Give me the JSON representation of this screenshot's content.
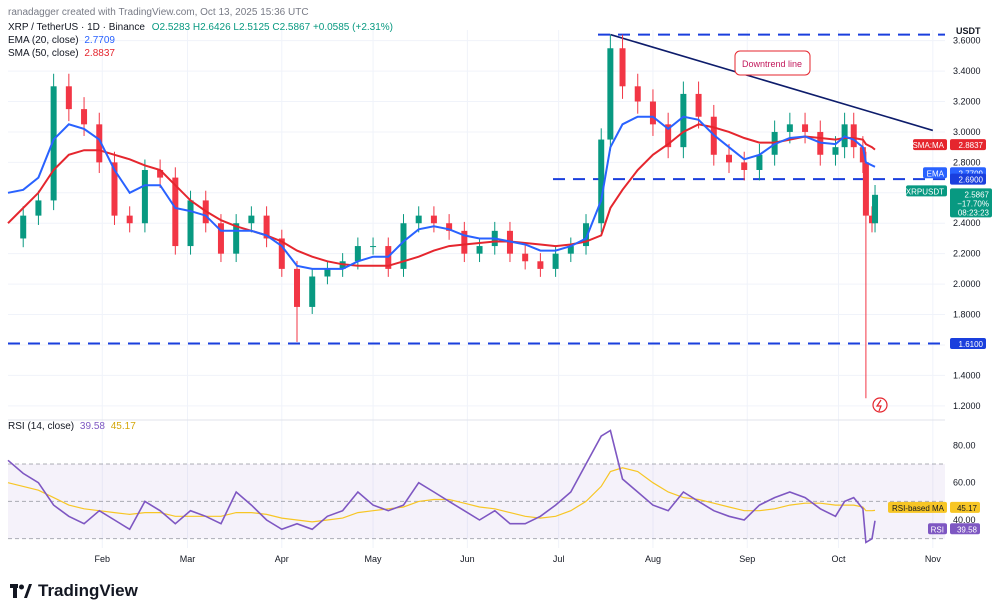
{
  "header": {
    "byline": "ranadagger created with TradingView.com, Oct 13, 2025 15:36 UTC",
    "symbol": "XRP / TetherUS · 1D · Binance",
    "ohlc": "O2.5283 H2.6426 L2.5125 C2.5867 +0.0585 (+2.31%)",
    "ema": "EMA (20, close)",
    "ema_value": "2.7709",
    "sma": "SMA (50, close)",
    "sma_value": "2.8837",
    "rsi": "RSI (14, close)",
    "rsi_value": "39.58",
    "rsi_ma_value": "45.17"
  },
  "brand": {
    "name": "TradingView"
  },
  "colors": {
    "up": "#089981",
    "down": "#f23645",
    "ema": "#2962ff",
    "sma": "#e5262e",
    "rsi": "#7e57c2",
    "rsi_ma": "#f7c625",
    "trend": "#0d1c6b",
    "level": "#1a3fdd"
  },
  "chart_data": {
    "type": "line",
    "title": "",
    "currency_label": "USDT",
    "x_ticks": [
      "Feb",
      "Mar",
      "Apr",
      "May",
      "Jun",
      "Jul",
      "Aug",
      "Sep",
      "Oct",
      "Nov"
    ],
    "y_ticks": [
      "3.6000",
      "3.4000",
      "3.2000",
      "3.0000",
      "2.8000",
      "2.6000",
      "2.4000",
      "2.2000",
      "2.0000",
      "1.8000",
      "1.6000",
      "1.4000",
      "1.2000"
    ],
    "ylim": [
      1.12,
      3.67
    ],
    "series": [
      {
        "name": "XRP / TetherUS · 1D · Binance",
        "sample_every_days": 5,
        "x": [
          "2025-01-01",
          "2025-01-06",
          "2025-01-11",
          "2025-01-16",
          "2025-01-21",
          "2025-01-26",
          "2025-01-31",
          "2025-02-05",
          "2025-02-10",
          "2025-02-15",
          "2025-02-20",
          "2025-02-25",
          "2025-03-02",
          "2025-03-07",
          "2025-03-12",
          "2025-03-17",
          "2025-03-22",
          "2025-03-27",
          "2025-04-01",
          "2025-04-06",
          "2025-04-11",
          "2025-04-16",
          "2025-04-21",
          "2025-04-26",
          "2025-05-01",
          "2025-05-06",
          "2025-05-11",
          "2025-05-16",
          "2025-05-21",
          "2025-05-26",
          "2025-05-31",
          "2025-06-05",
          "2025-06-10",
          "2025-06-15",
          "2025-06-20",
          "2025-06-25",
          "2025-06-30",
          "2025-07-05",
          "2025-07-10",
          "2025-07-15",
          "2025-07-18",
          "2025-07-22",
          "2025-07-27",
          "2025-08-01",
          "2025-08-06",
          "2025-08-11",
          "2025-08-16",
          "2025-08-21",
          "2025-08-26",
          "2025-08-31",
          "2025-09-05",
          "2025-09-10",
          "2025-09-15",
          "2025-09-20",
          "2025-09-25",
          "2025-09-30",
          "2025-10-03",
          "2025-10-06",
          "2025-10-09",
          "2025-10-10",
          "2025-10-12",
          "2025-10-13"
        ],
        "values": [
          2.3,
          2.45,
          2.55,
          3.3,
          3.15,
          3.05,
          2.8,
          2.45,
          2.4,
          2.75,
          2.7,
          2.25,
          2.55,
          2.4,
          2.2,
          2.4,
          2.45,
          2.3,
          2.1,
          1.85,
          2.05,
          2.1,
          2.15,
          2.25,
          2.25,
          2.1,
          2.4,
          2.45,
          2.4,
          2.35,
          2.2,
          2.25,
          2.35,
          2.2,
          2.15,
          2.1,
          2.2,
          2.25,
          2.4,
          2.95,
          3.55,
          3.3,
          3.2,
          3.05,
          2.9,
          3.25,
          3.1,
          2.85,
          2.8,
          2.75,
          2.85,
          3.0,
          3.05,
          3.0,
          2.85,
          2.9,
          3.05,
          2.9,
          2.8,
          2.45,
          2.4,
          2.5867
        ]
      },
      {
        "name": "EMA (20, close)",
        "values": [
          2.6,
          2.62,
          2.7,
          2.95,
          3.05,
          3.02,
          2.95,
          2.75,
          2.6,
          2.65,
          2.65,
          2.5,
          2.48,
          2.45,
          2.35,
          2.35,
          2.35,
          2.32,
          2.25,
          2.12,
          2.1,
          2.1,
          2.1,
          2.15,
          2.18,
          2.18,
          2.28,
          2.36,
          2.38,
          2.36,
          2.32,
          2.3,
          2.3,
          2.28,
          2.26,
          2.22,
          2.22,
          2.25,
          2.3,
          2.55,
          2.9,
          3.05,
          3.1,
          3.1,
          3.02,
          3.1,
          3.08,
          2.98,
          2.9,
          2.82,
          2.85,
          2.92,
          2.96,
          2.97,
          2.93,
          2.92,
          2.97,
          2.95,
          2.9,
          2.8,
          2.78,
          2.7709
        ]
      },
      {
        "name": "SMA (50, close)",
        "values": [
          2.4,
          2.5,
          2.6,
          2.75,
          2.85,
          2.88,
          2.88,
          2.85,
          2.82,
          2.78,
          2.75,
          2.65,
          2.55,
          2.48,
          2.42,
          2.38,
          2.35,
          2.32,
          2.28,
          2.22,
          2.18,
          2.15,
          2.13,
          2.12,
          2.12,
          2.12,
          2.15,
          2.18,
          2.22,
          2.25,
          2.26,
          2.27,
          2.28,
          2.28,
          2.27,
          2.26,
          2.25,
          2.26,
          2.28,
          2.32,
          2.5,
          2.62,
          2.75,
          2.85,
          2.92,
          3.0,
          3.05,
          3.03,
          3.0,
          2.96,
          2.93,
          2.93,
          2.95,
          2.97,
          2.96,
          2.95,
          2.96,
          2.96,
          2.95,
          2.92,
          2.9,
          2.8837
        ]
      }
    ],
    "rsi": {
      "name": "RSI (14, close)",
      "ticks": [
        "80.00",
        "60.00",
        "40.00"
      ],
      "ylim": [
        25,
        92
      ],
      "upper": 70,
      "lower": 30,
      "middle": 50,
      "values": [
        72,
        65,
        60,
        48,
        42,
        38,
        45,
        40,
        35,
        50,
        45,
        38,
        45,
        42,
        38,
        55,
        48,
        40,
        35,
        38,
        35,
        42,
        45,
        55,
        48,
        45,
        48,
        60,
        55,
        50,
        45,
        40,
        45,
        38,
        38,
        42,
        48,
        55,
        70,
        85,
        88,
        62,
        55,
        48,
        45,
        55,
        50,
        45,
        42,
        40,
        48,
        52,
        55,
        52,
        46,
        42,
        50,
        52,
        46,
        28,
        30,
        39.58
      ],
      "ma_values": [
        60,
        58,
        56,
        52,
        48,
        46,
        45,
        44,
        43,
        44,
        44,
        42,
        42,
        42,
        42,
        44,
        44,
        43,
        41,
        40,
        39,
        40,
        41,
        44,
        45,
        46,
        47,
        50,
        51,
        51,
        49,
        47,
        46,
        44,
        42,
        41,
        42,
        45,
        50,
        58,
        66,
        68,
        66,
        60,
        55,
        52,
        51,
        49,
        47,
        45,
        45,
        46,
        48,
        49,
        49,
        48,
        48,
        48,
        47,
        45,
        45,
        45.17
      ]
    },
    "annotations": [
      {
        "text": "Downtrend line",
        "x": "2025-08-31",
        "y": 3.48
      },
      {
        "text": "1.6100",
        "y": 1.61
      },
      {
        "text": "2.6900",
        "y": 2.69
      },
      {
        "text": "3.6400",
        "y": 3.64
      }
    ],
    "price_labels": [
      {
        "text": "SMA:MA 2.8837",
        "value": 2.8837
      },
      {
        "text": "EMA 2.7709",
        "value": 2.7709
      },
      {
        "text": "XRPUSDT 2.5867 −17.70% 08:23:23",
        "value": 2.5867
      }
    ],
    "grid": true
  }
}
